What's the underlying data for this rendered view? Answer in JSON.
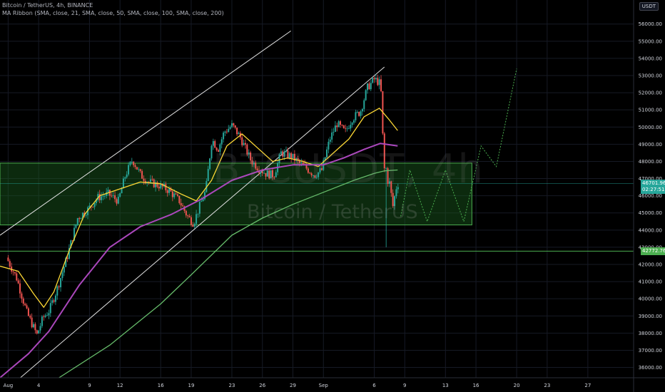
{
  "header": {
    "title": "Bitcoin / TetherUS, 4h, BINANCE",
    "indicator": "MA Ribbon (SMA, close, 21, SMA, close, 50, SMA, close, 100, SMA, close, 200)",
    "currency": "USDT"
  },
  "watermark": {
    "symbol": "BTCUSDT, 4h",
    "name": "Bitcoin / TetherUS"
  },
  "last_price": {
    "value": "46701.96",
    "countdown": "02:27:51"
  },
  "support_level": {
    "label": "42772.76"
  },
  "colors": {
    "up": "#26a69a",
    "down": "#ef5350",
    "ma21": "#fdd835",
    "ma100": "#ab47bc",
    "ma200": "#66bb6a",
    "zone_fill": "#1b5e20",
    "trendline": "#e0e0e0",
    "projection": "#4caf50"
  },
  "chart_data": {
    "type": "candlestick",
    "interval": "4h",
    "x_ticks": [
      {
        "label": "Aug",
        "day": 0
      },
      {
        "label": "4",
        "day": 3
      },
      {
        "label": "9",
        "day": 8
      },
      {
        "label": "12",
        "day": 11
      },
      {
        "label": "16",
        "day": 15
      },
      {
        "label": "19",
        "day": 18
      },
      {
        "label": "23",
        "day": 22
      },
      {
        "label": "26",
        "day": 25
      },
      {
        "label": "29",
        "day": 28
      },
      {
        "label": "Sep",
        "day": 31
      },
      {
        "label": "6",
        "day": 36
      },
      {
        "label": "9",
        "day": 39
      },
      {
        "label": "13",
        "day": 43
      },
      {
        "label": "16",
        "day": 46
      },
      {
        "label": "20",
        "day": 50
      },
      {
        "label": "23",
        "day": 53
      },
      {
        "label": "27",
        "day": 57
      }
    ],
    "x_range_days": [
      -0.8,
      61.5
    ],
    "y_ticks": [
      36000,
      37000,
      38000,
      39000,
      40000,
      41000,
      42000,
      43000,
      44000,
      45000,
      46000,
      47000,
      48000,
      49000,
      50000,
      51000,
      52000,
      53000,
      54000,
      55000,
      56000
    ],
    "ylim": [
      35400,
      57400
    ],
    "price_path": [
      [
        0,
        42400
      ],
      [
        1,
        41200
      ],
      [
        2,
        39200
      ],
      [
        3,
        37900
      ],
      [
        3.6,
        38900
      ],
      [
        4.2,
        39300
      ],
      [
        5,
        40600
      ],
      [
        6,
        42500
      ],
      [
        7,
        44700
      ],
      [
        8,
        45200
      ],
      [
        9,
        45900
      ],
      [
        10,
        46100
      ],
      [
        11,
        45700
      ],
      [
        11.7,
        47200
      ],
      [
        12.4,
        48100
      ],
      [
        13.2,
        47200
      ],
      [
        14,
        46800
      ],
      [
        15,
        46600
      ],
      [
        16,
        46300
      ],
      [
        17,
        45700
      ],
      [
        17.8,
        44800
      ],
      [
        18.4,
        44400
      ],
      [
        19,
        45400
      ],
      [
        19.6,
        46300
      ],
      [
        20.2,
        49300
      ],
      [
        20.8,
        48700
      ],
      [
        21.4,
        49700
      ],
      [
        22.2,
        50100
      ],
      [
        23,
        49400
      ],
      [
        24,
        48100
      ],
      [
        24.8,
        47600
      ],
      [
        25.5,
        47300
      ],
      [
        26.3,
        47200
      ],
      [
        27,
        48500
      ],
      [
        28,
        48300
      ],
      [
        28.8,
        47900
      ],
      [
        29.5,
        47600
      ],
      [
        30.3,
        47200
      ],
      [
        31,
        47500
      ],
      [
        31.8,
        49300
      ],
      [
        32.5,
        50200
      ],
      [
        33.3,
        49700
      ],
      [
        34,
        50500
      ],
      [
        34.8,
        50900
      ],
      [
        35.5,
        52300
      ],
      [
        36.2,
        52800
      ],
      [
        36.8,
        52500
      ],
      [
        37.2,
        46500
      ],
      [
        37.6,
        47000
      ],
      [
        38,
        45400
      ],
      [
        38.4,
        46700
      ]
    ],
    "series": [
      {
        "name": "MA 21",
        "points": [
          [
            -0.8,
            41900
          ],
          [
            1,
            41600
          ],
          [
            2.5,
            40300
          ],
          [
            3.5,
            39500
          ],
          [
            4.5,
            40400
          ],
          [
            6,
            42800
          ],
          [
            7.5,
            44900
          ],
          [
            9,
            46000
          ],
          [
            11,
            46400
          ],
          [
            13,
            46800
          ],
          [
            15,
            46700
          ],
          [
            17,
            46100
          ],
          [
            18.5,
            45700
          ],
          [
            20,
            46900
          ],
          [
            21.5,
            48900
          ],
          [
            23,
            49600
          ],
          [
            24.5,
            48800
          ],
          [
            26,
            48000
          ],
          [
            27.5,
            48200
          ],
          [
            29,
            48000
          ],
          [
            30.5,
            47700
          ],
          [
            32,
            48500
          ],
          [
            33.5,
            49300
          ],
          [
            35,
            50600
          ],
          [
            36.5,
            51100
          ],
          [
            37.5,
            50400
          ],
          [
            38.3,
            49800
          ]
        ]
      },
      {
        "name": "MA 100",
        "points": [
          [
            -0.8,
            35400
          ],
          [
            2,
            36800
          ],
          [
            4,
            38100
          ],
          [
            7,
            40800
          ],
          [
            10,
            43000
          ],
          [
            13,
            44200
          ],
          [
            16,
            44900
          ],
          [
            19,
            45800
          ],
          [
            22,
            46900
          ],
          [
            25,
            47500
          ],
          [
            28,
            47800
          ],
          [
            31,
            47800
          ],
          [
            33,
            48200
          ],
          [
            35,
            48700
          ],
          [
            36.6,
            49050
          ],
          [
            38.3,
            48900
          ]
        ]
      },
      {
        "name": "MA 200",
        "points": [
          [
            5,
            35400
          ],
          [
            10,
            37300
          ],
          [
            15,
            39700
          ],
          [
            18,
            41400
          ],
          [
            22,
            43700
          ],
          [
            25,
            44700
          ],
          [
            28,
            45500
          ],
          [
            31,
            46200
          ],
          [
            34,
            46900
          ],
          [
            36,
            47300
          ],
          [
            37,
            47450
          ],
          [
            38.3,
            47500
          ]
        ]
      }
    ],
    "zone": {
      "y_low": 44300,
      "y_high": 47900,
      "x_start": -0.8,
      "x_end": 45.6
    },
    "support_line": 42772.76,
    "last_price_line": 46701.96,
    "trendlines": [
      [
        [
          -0.8,
          43700
        ],
        [
          27.8,
          55600
        ]
      ],
      [
        [
          1.2,
          35400
        ],
        [
          37,
          53500
        ]
      ]
    ],
    "projection": [
      [
        38.6,
        44800
      ],
      [
        39.5,
        47500
      ],
      [
        41.2,
        44500
      ],
      [
        43,
        47500
      ],
      [
        44.8,
        44500
      ],
      [
        46.5,
        48900
      ],
      [
        48,
        47700
      ],
      [
        50,
        53400
      ]
    ]
  }
}
